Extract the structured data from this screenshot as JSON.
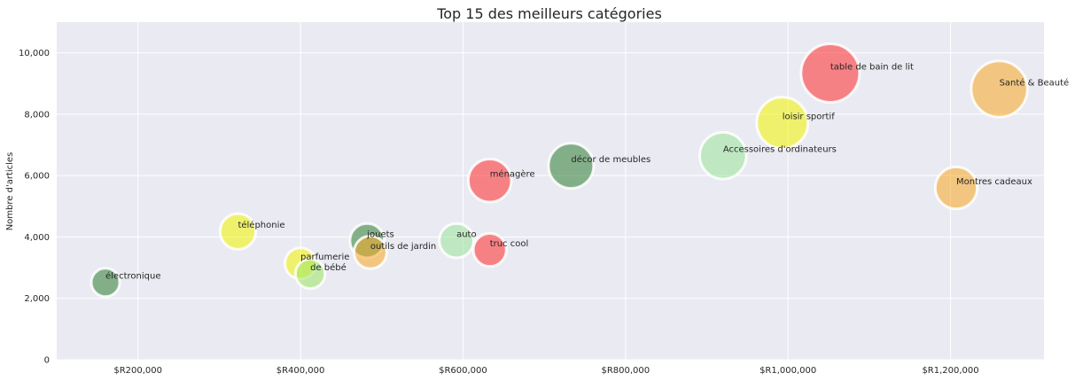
{
  "chart_data": {
    "type": "scatter",
    "title": "Top 15 des meilleurs catégories",
    "xlabel": "",
    "ylabel": "Nombre d'articles",
    "xlim": [
      100000,
      1315000
    ],
    "ylim": [
      0,
      11000
    ],
    "x_ticks": [
      {
        "value": 200000,
        "label": "$R200,000"
      },
      {
        "value": 400000,
        "label": "$R400,000"
      },
      {
        "value": 600000,
        "label": "$R600,000"
      },
      {
        "value": 800000,
        "label": "$R800,000"
      },
      {
        "value": 1000000,
        "label": "$R1,000,000"
      },
      {
        "value": 1200000,
        "label": "$R1,200,000"
      }
    ],
    "y_ticks": [
      {
        "value": 0,
        "label": "0"
      },
      {
        "value": 2000,
        "label": "2,000"
      },
      {
        "value": 4000,
        "label": "4,000"
      },
      {
        "value": 6000,
        "label": "6,000"
      },
      {
        "value": 8000,
        "label": "8,000"
      },
      {
        "value": 10000,
        "label": "10,000"
      }
    ],
    "grid": true,
    "points": [
      {
        "label": "électronique",
        "x": 160000,
        "y": 2520,
        "size": 2520,
        "color": "#2e7d32"
      },
      {
        "label": "téléphonie",
        "x": 323000,
        "y": 4180,
        "size": 4180,
        "color": "#f2f500"
      },
      {
        "label": "parfumerie",
        "x": 400000,
        "y": 3140,
        "size": 3140,
        "color": "#f2f500"
      },
      {
        "label": "de bébé",
        "x": 412000,
        "y": 2800,
        "size": 2800,
        "color": "#9be564"
      },
      {
        "label": "jouets",
        "x": 482000,
        "y": 3880,
        "size": 3880,
        "color": "#2e7d32"
      },
      {
        "label": "outils de jardin",
        "x": 486000,
        "y": 3500,
        "size": 3500,
        "color": "#f7a823"
      },
      {
        "label": "auto",
        "x": 592000,
        "y": 3880,
        "size": 3880,
        "color": "#9be59b"
      },
      {
        "label": "truc cool",
        "x": 633000,
        "y": 3580,
        "size": 3580,
        "color": "#ff2a2a"
      },
      {
        "label": "ménagère",
        "x": 633000,
        "y": 5840,
        "size": 5840,
        "color": "#ff2a2a"
      },
      {
        "label": "décor de meubles",
        "x": 733000,
        "y": 6320,
        "size": 6320,
        "color": "#2e7d32"
      },
      {
        "label": "Accessoires d'ordinateurs",
        "x": 920000,
        "y": 6650,
        "size": 6650,
        "color": "#9be59b"
      },
      {
        "label": "loisir sportif",
        "x": 993000,
        "y": 7720,
        "size": 7720,
        "color": "#f2f500"
      },
      {
        "label": "table de bain de lit",
        "x": 1052000,
        "y": 9340,
        "size": 9340,
        "color": "#ff2a2a"
      },
      {
        "label": "Santé & Beauté",
        "x": 1260000,
        "y": 8820,
        "size": 8820,
        "color": "#f7a823"
      },
      {
        "label": "Montres cadeaux",
        "x": 1207000,
        "y": 5600,
        "size": 5600,
        "color": "#f7a823"
      }
    ],
    "legend": "none"
  }
}
